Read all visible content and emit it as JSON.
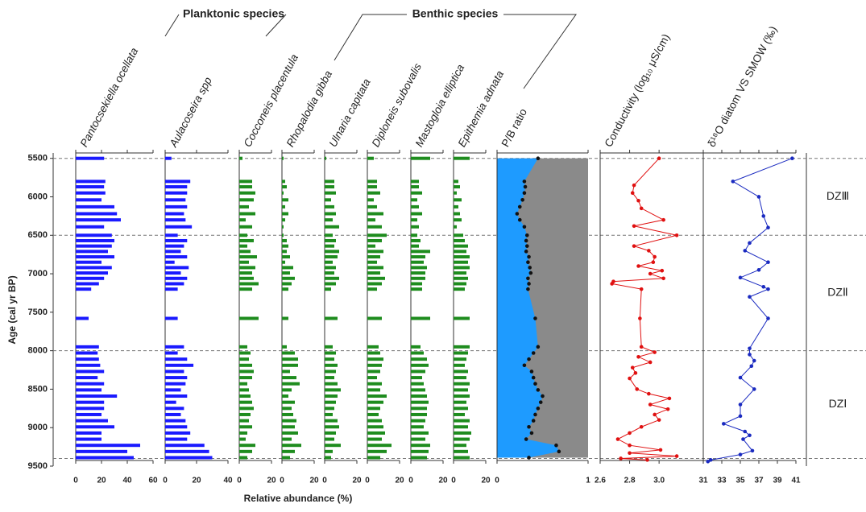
{
  "age_axis": {
    "label": "Age (cal yr BP)",
    "lim": [
      5430,
      9500
    ],
    "ticks": [
      5500,
      6000,
      6500,
      7000,
      7500,
      8000,
      8500,
      9000,
      9500
    ]
  },
  "zones": [
    {
      "label": "DZⅢ",
      "top": 5500,
      "bottom": 6500
    },
    {
      "label": "DZⅡ",
      "top": 6500,
      "bottom": 8000
    },
    {
      "label": "DZⅠ",
      "top": 8000,
      "bottom": 9400
    }
  ],
  "chart_data": [
    {
      "type": "bar",
      "xlabel": "Relative abundance (%)",
      "groups": [
        {
          "label": "Planktonic species"
        },
        {
          "label": "Benthic species"
        }
      ],
      "x": [
        5500,
        5800,
        5870,
        5950,
        6040,
        6130,
        6220,
        6300,
        6390,
        6500,
        6570,
        6640,
        6710,
        6780,
        6850,
        6920,
        6990,
        7060,
        7130,
        7200,
        7580,
        7950,
        8030,
        8110,
        8190,
        8270,
        8350,
        8430,
        8510,
        8590,
        8670,
        8750,
        8830,
        8910,
        8990,
        9070,
        9150,
        9230,
        9310,
        9390
      ],
      "series": [
        {
          "name": "Pantocsekiella ocellata",
          "color": "#1a1aff",
          "xlim": [
            0,
            60
          ],
          "xticks": [
            0,
            20,
            40,
            60
          ],
          "values": [
            22,
            23,
            22,
            23,
            20,
            30,
            32,
            35,
            22,
            28,
            30,
            28,
            25,
            30,
            20,
            28,
            25,
            22,
            18,
            12,
            10,
            18,
            17,
            18,
            19,
            22,
            17,
            22,
            20,
            32,
            22,
            22,
            20,
            25,
            30,
            20,
            20,
            50,
            40,
            45
          ]
        },
        {
          "name": "Aulacoseira spp",
          "color": "#1a1aff",
          "xlim": [
            0,
            40
          ],
          "xticks": [
            0,
            20,
            40
          ],
          "values": [
            4,
            16,
            14,
            14,
            13,
            14,
            12,
            13,
            17,
            8,
            14,
            12,
            10,
            14,
            6,
            15,
            10,
            14,
            12,
            8,
            8,
            12,
            8,
            14,
            18,
            12,
            14,
            13,
            10,
            14,
            7,
            12,
            10,
            13,
            14,
            16,
            14,
            25,
            28,
            30
          ]
        },
        {
          "name": "Cocconeis placentula",
          "color": "#1e8c1e",
          "xlim": [
            0,
            20
          ],
          "xticks": [
            0,
            20
          ],
          "values": [
            2,
            8,
            8,
            10,
            9,
            6,
            10,
            4,
            8,
            5,
            9,
            5,
            7,
            11,
            6,
            10,
            8,
            9,
            12,
            8,
            12,
            5,
            7,
            6,
            8,
            9,
            8,
            5,
            6,
            7,
            8,
            9,
            7,
            6,
            8,
            5,
            4,
            10,
            8,
            5
          ]
        },
        {
          "name": "Rhopalodia gibba",
          "color": "#1e8c1e",
          "xlim": [
            0,
            20
          ],
          "xticks": [
            0,
            20
          ],
          "values": [
            1,
            2,
            3,
            1,
            4,
            2,
            4,
            2,
            1,
            1,
            3,
            4,
            3,
            5,
            2,
            7,
            5,
            8,
            6,
            4,
            4,
            3,
            8,
            10,
            10,
            5,
            9,
            11,
            6,
            4,
            8,
            6,
            7,
            9,
            8,
            10,
            6,
            12,
            8,
            5
          ]
        },
        {
          "name": "Ulnaria capitata",
          "color": "#1e8c1e",
          "xlim": [
            0,
            20
          ],
          "xticks": [
            0,
            20
          ],
          "values": [
            1,
            6,
            6,
            7,
            4,
            6,
            7,
            5,
            9,
            5,
            7,
            6,
            9,
            8,
            5,
            7,
            6,
            9,
            7,
            4,
            8,
            5,
            7,
            6,
            8,
            7,
            6,
            8,
            10,
            8,
            7,
            6,
            5,
            8,
            9,
            7,
            6,
            10,
            5,
            4
          ]
        },
        {
          "name": "Diploneis subovalis",
          "color": "#1e8c1e",
          "xlim": [
            0,
            20
          ],
          "xticks": [
            0,
            20
          ],
          "values": [
            4,
            6,
            6,
            8,
            4,
            6,
            10,
            5,
            9,
            12,
            9,
            5,
            10,
            8,
            6,
            10,
            8,
            11,
            9,
            6,
            9,
            7,
            8,
            10,
            9,
            8,
            6,
            9,
            8,
            12,
            10,
            8,
            7,
            9,
            10,
            11,
            9,
            15,
            12,
            8
          ]
        },
        {
          "name": "Mastogloia elliptica",
          "color": "#1e8c1e",
          "xlim": [
            0,
            20
          ],
          "xticks": [
            0,
            20
          ],
          "values": [
            12,
            5,
            5,
            7,
            4,
            5,
            7,
            4,
            5,
            4,
            6,
            5,
            12,
            9,
            8,
            10,
            9,
            9,
            7,
            7,
            12,
            6,
            8,
            10,
            11,
            9,
            7,
            8,
            9,
            10,
            11,
            10,
            10,
            9,
            8,
            11,
            9,
            12,
            11,
            10
          ]
        },
        {
          "name": "Epithemia adnata",
          "color": "#1e8c1e",
          "xlim": [
            0,
            20
          ],
          "xticks": [
            0,
            20
          ],
          "values": [
            10,
            3,
            4,
            2,
            5,
            3,
            4,
            5,
            2,
            6,
            7,
            9,
            8,
            10,
            9,
            10,
            8,
            9,
            8,
            7,
            10,
            10,
            9,
            8,
            7,
            9,
            8,
            10,
            9,
            10,
            8,
            9,
            7,
            10,
            9,
            11,
            10,
            8,
            9,
            10
          ]
        },
        {
          "name": "P/B ratio",
          "type": "area",
          "color": "#1e9bff",
          "background_color": "#8a8a8a",
          "xlim": [
            0,
            1
          ],
          "xticks": [
            0,
            1
          ],
          "values": [
            0.45,
            0.3,
            0.31,
            0.3,
            0.28,
            0.25,
            0.22,
            0.25,
            0.3,
            0.33,
            0.32,
            0.33,
            0.32,
            0.35,
            0.34,
            0.36,
            0.37,
            0.34,
            0.35,
            0.34,
            0.42,
            0.45,
            0.4,
            0.35,
            0.3,
            0.38,
            0.4,
            0.42,
            0.45,
            0.5,
            0.48,
            0.45,
            0.42,
            0.4,
            0.35,
            0.38,
            0.32,
            0.65,
            0.68,
            0.35
          ]
        }
      ]
    },
    {
      "type": "line",
      "title": "Conductivity (log₁₀ μS/cm)",
      "color": "#e01010",
      "xlim": [
        2.6,
        3.3
      ],
      "xticks": [
        2.6,
        2.8,
        {
          "value": 3,
          "label": "3.0"
        }
      ],
      "x": [
        5500,
        5850,
        5950,
        6050,
        6150,
        6300,
        6380,
        6500,
        6640,
        6700,
        6780,
        6850,
        6900,
        6960,
        7000,
        7060,
        7100,
        7130,
        7200,
        7580,
        7950,
        8020,
        8080,
        8150,
        8220,
        8290,
        8360,
        8500,
        8560,
        8620,
        8700,
        8760,
        8830,
        8900,
        8990,
        9070,
        9150,
        9230,
        9290,
        9330,
        9370,
        9400,
        9420
      ],
      "values": [
        3.0,
        2.83,
        2.82,
        2.86,
        2.88,
        3.03,
        2.83,
        3.12,
        2.83,
        2.93,
        2.97,
        2.96,
        2.86,
        3.02,
        2.94,
        3.03,
        2.69,
        2.68,
        2.88,
        2.87,
        2.88,
        2.97,
        2.86,
        2.94,
        2.82,
        2.84,
        2.8,
        2.85,
        2.93,
        3.07,
        2.94,
        3.06,
        2.97,
        3.0,
        2.88,
        2.8,
        2.72,
        2.8,
        3.01,
        2.8,
        3.12,
        2.74,
        2.92
      ]
    },
    {
      "type": "line",
      "title": "δ¹⁸O diatom VS SMOW (‰)",
      "color": "#1a2ac0",
      "xlim": [
        31,
        41
      ],
      "xticks": [
        31,
        33,
        35,
        37,
        39,
        41
      ],
      "x": [
        5500,
        5800,
        6000,
        6250,
        6400,
        6600,
        6700,
        6850,
        6950,
        7050,
        7170,
        7200,
        7300,
        7580,
        7970,
        8050,
        8130,
        8200,
        8350,
        8500,
        8700,
        8850,
        8950,
        9050,
        9100,
        9150,
        9300,
        9350,
        9420,
        9440
      ],
      "values": [
        40.6,
        34.2,
        37,
        37.5,
        38,
        36,
        35.5,
        38,
        37,
        35,
        37.5,
        38,
        36,
        38,
        36,
        36,
        36.5,
        36.2,
        35,
        36.5,
        35,
        35,
        33.2,
        35.5,
        36,
        35.3,
        36.3,
        35,
        31.8,
        31.5
      ]
    }
  ]
}
